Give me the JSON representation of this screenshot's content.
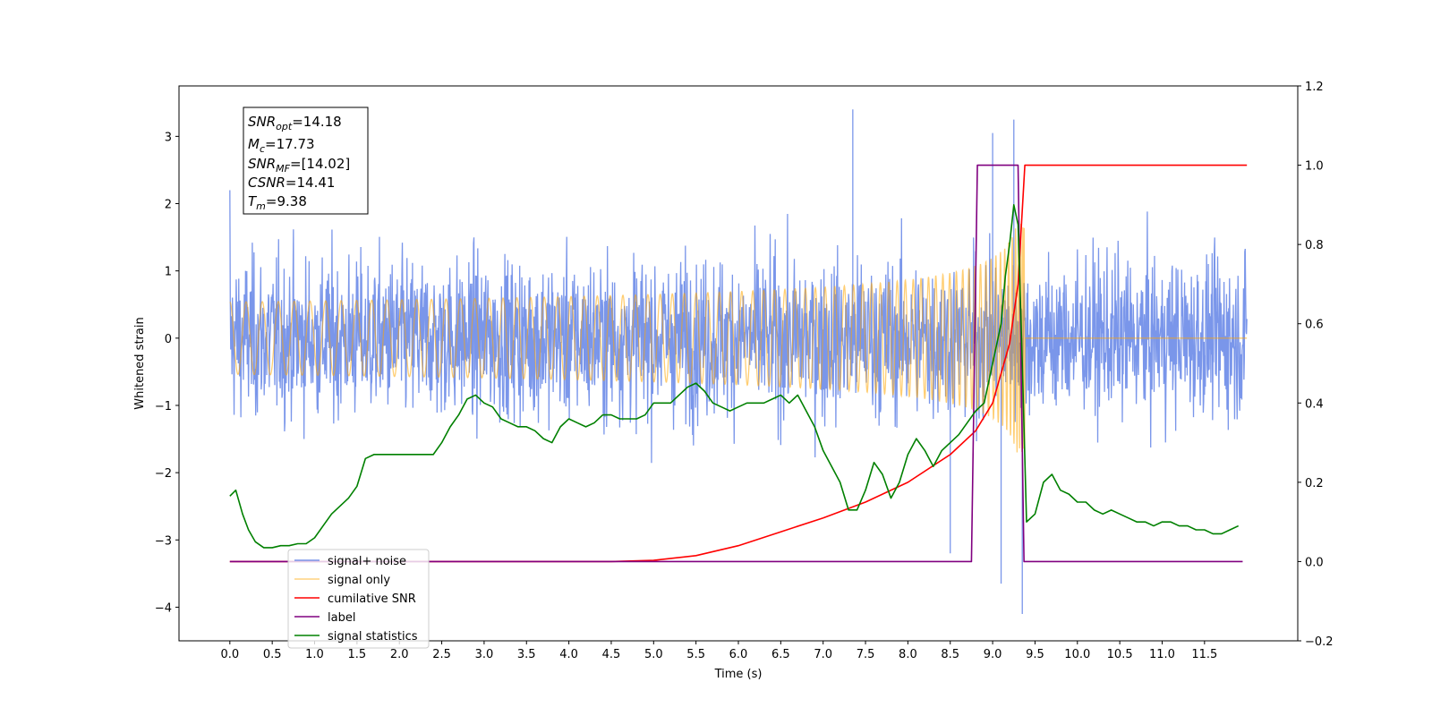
{
  "chart_data": {
    "type": "line",
    "xlabel": "Time (s)",
    "ylabel": "Whitened strain",
    "xlim": [
      -0.6,
      12.6
    ],
    "ylim": [
      -4.5,
      3.75
    ],
    "y2lim": [
      -0.2,
      1.2
    ],
    "x_ticks": [
      0.0,
      0.5,
      1.0,
      1.5,
      2.0,
      2.5,
      3.0,
      3.5,
      4.0,
      4.5,
      5.0,
      5.5,
      6.0,
      6.5,
      7.0,
      7.5,
      8.0,
      8.5,
      9.0,
      9.5,
      10.0,
      10.5,
      11.0,
      11.5
    ],
    "x_tick_labels": [
      "0.0",
      "0.5",
      "1.0",
      "1.5",
      "2.0",
      "2.5",
      "3.0",
      "3.5",
      "4.0",
      "4.5",
      "5.0",
      "5.5",
      "6.0",
      "6.5",
      "7.0",
      "7.5",
      "8.0",
      "8.5",
      "9.0",
      "9.5",
      "10.0",
      "10.5",
      "11.0",
      "11.5"
    ],
    "y_ticks": [
      3,
      2,
      1,
      0,
      -1,
      -2,
      -3,
      -4
    ],
    "y_tick_labels": [
      "3",
      "2",
      "1",
      "0",
      "−1",
      "−2",
      "−3",
      "−4"
    ],
    "y2_ticks": [
      1.2,
      1.0,
      0.8,
      0.6,
      0.4,
      0.2,
      0.0,
      -0.2
    ],
    "y2_tick_labels": [
      "1.2",
      "1.0",
      "0.8",
      "0.6",
      "0.4",
      "0.2",
      "0.0",
      "−0.2"
    ],
    "legend_position": "lower-left",
    "legend": [
      {
        "label": "signal+ noise",
        "color": "#4169e1"
      },
      {
        "label": "signal only",
        "color": "#ffa500"
      },
      {
        "label": "cumilative SNR",
        "color": "#ff0000"
      },
      {
        "label": "label",
        "color": "#800080"
      },
      {
        "label": "signal statistics",
        "color": "#008000"
      }
    ],
    "info_box": {
      "snr_opt": "=14.18",
      "mc": "=17.73",
      "snr_mf": "=[14.02]",
      "csnr": "=14.41",
      "tm": "=9.38"
    },
    "series": [
      {
        "name": "signal+ noise",
        "axis": "left",
        "color": "#4169e1",
        "description_values": "noise band roughly -2 to 2.5 over 0-12 s, spikes up to 3.4 near 7.35 s and down to -4.1 near 9.35 s",
        "x_range": [
          0.0,
          12.0
        ],
        "typical_amplitude": 1.6,
        "peaks": [
          [
            7.35,
            3.4
          ],
          [
            9.25,
            3.25
          ],
          [
            9.0,
            3.05
          ],
          [
            9.1,
            -3.65
          ],
          [
            9.35,
            -4.1
          ],
          [
            8.5,
            -3.2
          ]
        ]
      },
      {
        "name": "signal only",
        "axis": "left",
        "color": "#ffa500",
        "x_range": [
          0.0,
          12.0
        ],
        "merger_time": 9.38,
        "peak_amplitude": 1.7
      },
      {
        "name": "cumilative SNR",
        "axis": "right",
        "color": "#ff0000",
        "x": [
          0.0,
          4.5,
          5.0,
          5.5,
          6.0,
          6.5,
          7.0,
          7.5,
          8.0,
          8.5,
          8.8,
          9.0,
          9.2,
          9.3,
          9.38,
          9.4,
          12.0
        ],
        "values": [
          0.0,
          0.0,
          0.003,
          0.015,
          0.04,
          0.075,
          0.11,
          0.15,
          0.2,
          0.27,
          0.33,
          0.4,
          0.55,
          0.7,
          1.0,
          1.0,
          1.0
        ]
      },
      {
        "name": "label",
        "axis": "right",
        "color": "#800080",
        "x": [
          0.0,
          8.75,
          8.82,
          9.3,
          9.37,
          11.95
        ],
        "values": [
          0.0,
          0.0,
          1.0,
          1.0,
          0.0,
          0.0
        ]
      },
      {
        "name": "signal statistics",
        "axis": "right",
        "color": "#008000",
        "x": [
          0.0,
          0.07,
          0.15,
          0.22,
          0.3,
          0.4,
          0.5,
          0.6,
          0.7,
          0.8,
          0.9,
          1.0,
          1.1,
          1.2,
          1.3,
          1.4,
          1.5,
          1.6,
          1.7,
          1.8,
          1.9,
          2.0,
          2.1,
          2.2,
          2.3,
          2.4,
          2.5,
          2.6,
          2.7,
          2.8,
          2.9,
          3.0,
          3.1,
          3.2,
          3.3,
          3.4,
          3.5,
          3.6,
          3.7,
          3.8,
          3.9,
          4.0,
          4.1,
          4.2,
          4.3,
          4.4,
          4.5,
          4.6,
          4.7,
          4.8,
          4.9,
          5.0,
          5.1,
          5.2,
          5.3,
          5.4,
          5.5,
          5.6,
          5.7,
          5.8,
          5.9,
          6.0,
          6.1,
          6.2,
          6.3,
          6.4,
          6.5,
          6.6,
          6.7,
          6.8,
          6.9,
          7.0,
          7.1,
          7.2,
          7.3,
          7.4,
          7.5,
          7.6,
          7.7,
          7.8,
          7.9,
          8.0,
          8.1,
          8.2,
          8.3,
          8.4,
          8.5,
          8.6,
          8.7,
          8.8,
          8.9,
          9.0,
          9.1,
          9.15,
          9.2,
          9.25,
          9.3,
          9.35,
          9.4,
          9.5,
          9.6,
          9.7,
          9.8,
          9.9,
          10.0,
          10.1,
          10.2,
          10.3,
          10.4,
          10.5,
          10.6,
          10.7,
          10.8,
          10.9,
          11.0,
          11.1,
          11.2,
          11.3,
          11.4,
          11.5,
          11.6,
          11.7,
          11.8,
          11.9
        ],
        "values": [
          0.165,
          0.18,
          0.12,
          0.08,
          0.05,
          0.035,
          0.035,
          0.04,
          0.04,
          0.045,
          0.045,
          0.06,
          0.09,
          0.12,
          0.14,
          0.16,
          0.19,
          0.26,
          0.27,
          0.27,
          0.27,
          0.27,
          0.27,
          0.27,
          0.27,
          0.27,
          0.3,
          0.34,
          0.37,
          0.41,
          0.42,
          0.4,
          0.39,
          0.36,
          0.35,
          0.34,
          0.34,
          0.33,
          0.31,
          0.3,
          0.34,
          0.36,
          0.35,
          0.34,
          0.35,
          0.37,
          0.37,
          0.36,
          0.36,
          0.36,
          0.37,
          0.4,
          0.4,
          0.4,
          0.42,
          0.44,
          0.45,
          0.43,
          0.4,
          0.39,
          0.38,
          0.39,
          0.4,
          0.4,
          0.4,
          0.41,
          0.42,
          0.4,
          0.42,
          0.38,
          0.34,
          0.28,
          0.24,
          0.2,
          0.13,
          0.13,
          0.18,
          0.25,
          0.22,
          0.16,
          0.2,
          0.27,
          0.31,
          0.28,
          0.24,
          0.28,
          0.3,
          0.32,
          0.35,
          0.38,
          0.4,
          0.5,
          0.6,
          0.72,
          0.8,
          0.9,
          0.85,
          0.5,
          0.1,
          0.12,
          0.2,
          0.22,
          0.18,
          0.17,
          0.15,
          0.15,
          0.13,
          0.12,
          0.13,
          0.12,
          0.11,
          0.1,
          0.1,
          0.09,
          0.1,
          0.1,
          0.09,
          0.09,
          0.08,
          0.08,
          0.07,
          0.07,
          0.08,
          0.09
        ]
      }
    ]
  }
}
